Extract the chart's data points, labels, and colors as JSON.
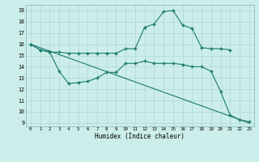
{
  "line1_x": [
    0,
    1,
    2,
    3,
    4,
    5,
    6,
    7,
    8,
    9,
    10,
    11,
    12,
    13,
    14,
    15,
    16,
    17,
    18,
    19,
    20,
    21
  ],
  "line1_y": [
    16.0,
    15.5,
    15.3,
    15.3,
    15.2,
    15.2,
    15.2,
    15.2,
    15.2,
    15.2,
    15.6,
    15.6,
    17.5,
    17.8,
    18.9,
    19.0,
    17.7,
    17.4,
    15.7,
    15.6,
    15.6,
    15.5
  ],
  "line2_x": [
    0,
    1,
    2,
    3,
    4,
    5,
    6,
    7,
    8,
    9,
    10,
    11,
    12,
    13,
    14,
    15,
    16,
    17,
    18,
    19,
    20,
    21,
    22,
    23
  ],
  "line2_y": [
    16.0,
    15.5,
    15.3,
    13.6,
    12.5,
    12.6,
    12.7,
    13.0,
    13.5,
    13.5,
    14.3,
    14.3,
    14.5,
    14.3,
    14.3,
    14.3,
    14.2,
    14.0,
    14.0,
    13.6,
    11.8,
    9.7,
    9.3,
    9.1
  ],
  "line3_x": [
    0,
    23
  ],
  "line3_y": [
    16.0,
    9.0
  ],
  "color": "#1a7a6e",
  "bg_color": "#cceeea",
  "grid_color": "#aad8d2",
  "xlabel": "Humidex (Indice chaleur)",
  "xlim": [
    -0.5,
    23.5
  ],
  "ylim": [
    8.7,
    19.5
  ],
  "yticks": [
    9,
    10,
    11,
    12,
    13,
    14,
    15,
    16,
    17,
    18,
    19
  ],
  "xticks": [
    0,
    1,
    2,
    3,
    4,
    5,
    6,
    7,
    8,
    9,
    10,
    11,
    12,
    13,
    14,
    15,
    16,
    17,
    18,
    19,
    20,
    21,
    22,
    23
  ]
}
